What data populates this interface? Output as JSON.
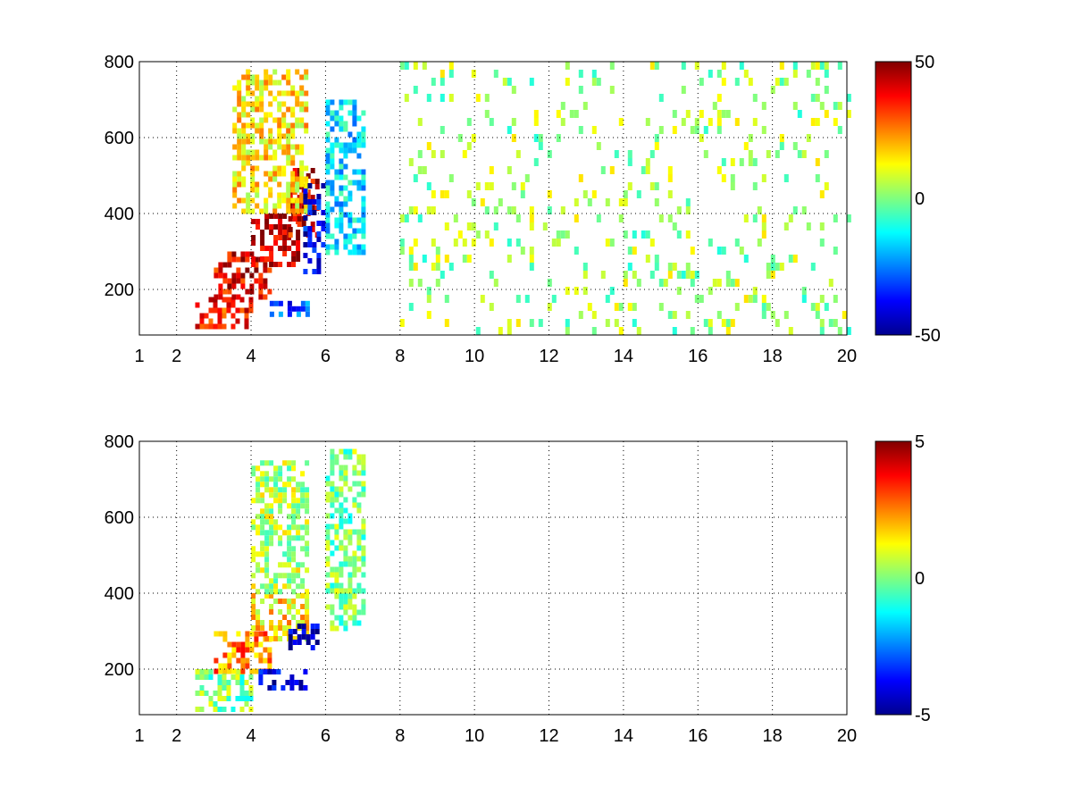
{
  "chart_data": [
    {
      "type": "heatmap",
      "title": "",
      "xlabel": "",
      "ylabel": "",
      "xlim": [
        1,
        20
      ],
      "ylim": [
        80,
        800
      ],
      "grid": true,
      "x_ticks": [
        1,
        2,
        4,
        6,
        8,
        10,
        12,
        14,
        16,
        18,
        20
      ],
      "y_ticks": [
        200,
        400,
        600,
        800
      ],
      "x_tick_labels": [
        "1",
        "2",
        "4",
        "6",
        "8",
        "10",
        "12",
        "14",
        "16",
        "18",
        "20"
      ],
      "y_tick_labels": [
        "200",
        "400",
        "600",
        "800"
      ],
      "colorbar": {
        "colormap": "jet",
        "range": [
          -50,
          50
        ],
        "tick_labels": [
          "50",
          "0",
          "-50"
        ]
      },
      "features": [
        {
          "x": [
            2.5,
            4.0
          ],
          "y": [
            100,
            180
          ],
          "value": 35
        },
        {
          "x": [
            3.0,
            4.5
          ],
          "y": [
            180,
            300
          ],
          "value": 40
        },
        {
          "x": [
            4.0,
            5.2
          ],
          "y": [
            260,
            400
          ],
          "value": 45
        },
        {
          "x": [
            5.0,
            5.8
          ],
          "y": [
            350,
            520
          ],
          "value": 40
        },
        {
          "x": [
            3.5,
            5.5
          ],
          "y": [
            400,
            780
          ],
          "value": 15
        },
        {
          "x": [
            5.4,
            5.9
          ],
          "y": [
            250,
            480
          ],
          "value": -40
        },
        {
          "x": [
            4.5,
            5.5
          ],
          "y": [
            130,
            170
          ],
          "value": -30
        },
        {
          "x": [
            6.0,
            7.0
          ],
          "y": [
            300,
            700
          ],
          "value": -15
        },
        {
          "x": [
            8.0,
            20.0
          ],
          "y": [
            80,
            800
          ],
          "value": 3
        }
      ]
    },
    {
      "type": "heatmap",
      "title": "",
      "xlabel": "",
      "ylabel": "",
      "xlim": [
        1,
        20
      ],
      "ylim": [
        80,
        800
      ],
      "grid": true,
      "x_ticks": [
        1,
        2,
        4,
        6,
        8,
        10,
        12,
        14,
        16,
        18,
        20
      ],
      "y_ticks": [
        200,
        400,
        600,
        800
      ],
      "x_tick_labels": [
        "1",
        "2",
        "4",
        "6",
        "8",
        "10",
        "12",
        "14",
        "16",
        "18",
        "20"
      ],
      "y_tick_labels": [
        "200",
        "400",
        "600",
        "800"
      ],
      "colorbar": {
        "colormap": "jet",
        "range": [
          -5,
          5
        ],
        "tick_labels": [
          "5",
          "0",
          "-5"
        ]
      },
      "features": [
        {
          "x": [
            2.5,
            4.0
          ],
          "y": [
            100,
            200
          ],
          "value": 0
        },
        {
          "x": [
            3.0,
            4.5
          ],
          "y": [
            200,
            300
          ],
          "value": 2.5
        },
        {
          "x": [
            4.0,
            5.5
          ],
          "y": [
            280,
            400
          ],
          "value": 1.5
        },
        {
          "x": [
            5.0,
            5.8
          ],
          "y": [
            260,
            320
          ],
          "value": -4.5
        },
        {
          "x": [
            4.2,
            5.5
          ],
          "y": [
            150,
            200
          ],
          "value": -4
        },
        {
          "x": [
            4.0,
            5.5
          ],
          "y": [
            400,
            750
          ],
          "value": 0.5
        },
        {
          "x": [
            6.0,
            7.0
          ],
          "y": [
            300,
            780
          ],
          "value": 0
        }
      ]
    }
  ]
}
